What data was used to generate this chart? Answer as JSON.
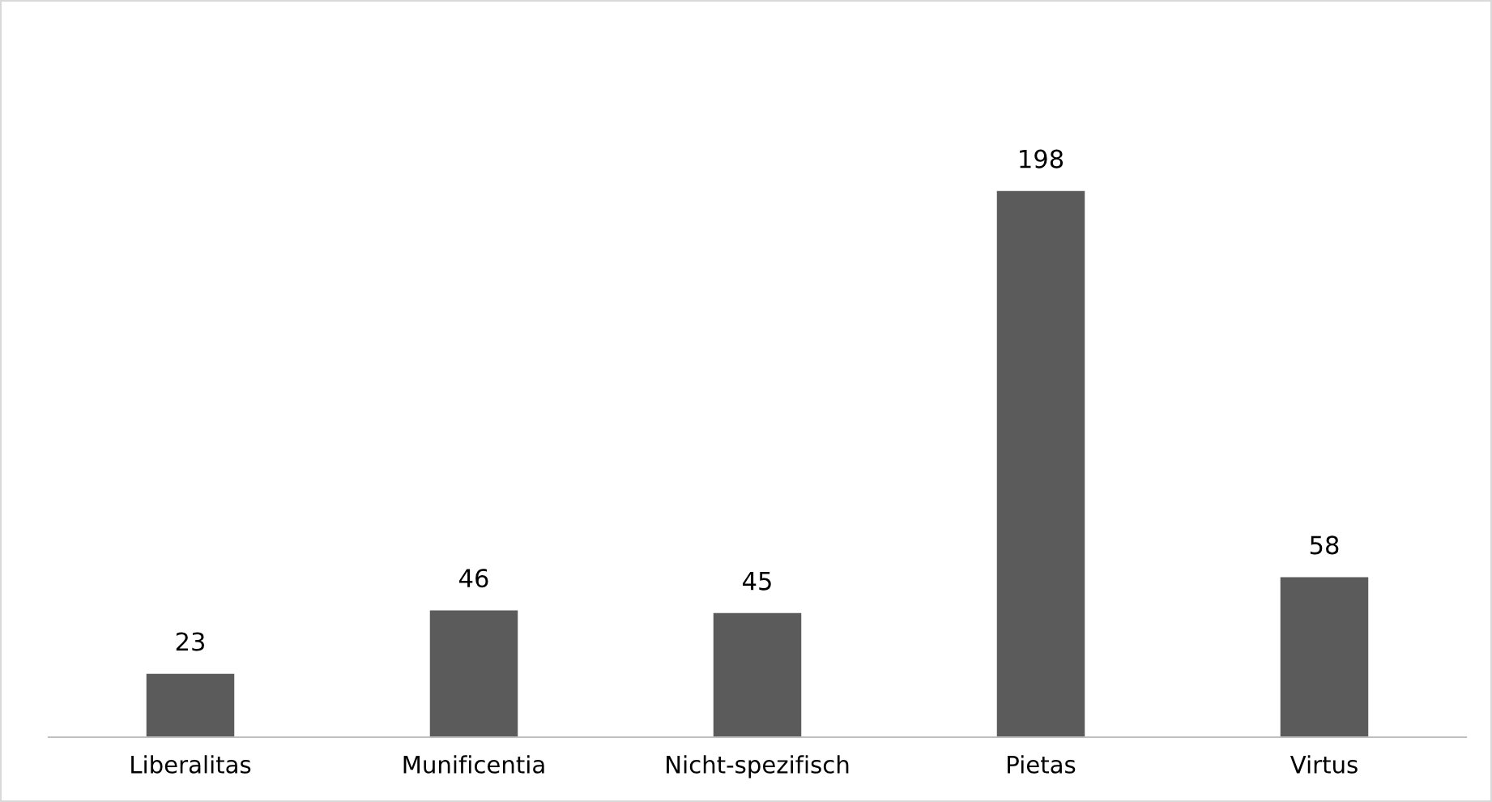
{
  "chart_data": {
    "type": "bar",
    "categories": [
      "Liberalitas",
      "Munificentia",
      "Nicht-spezifisch",
      "Pietas",
      "Virtus"
    ],
    "values": [
      23,
      46,
      45,
      198,
      58
    ],
    "color": "#5b5b5b",
    "data_labels": true,
    "grid": false,
    "legend": false
  }
}
